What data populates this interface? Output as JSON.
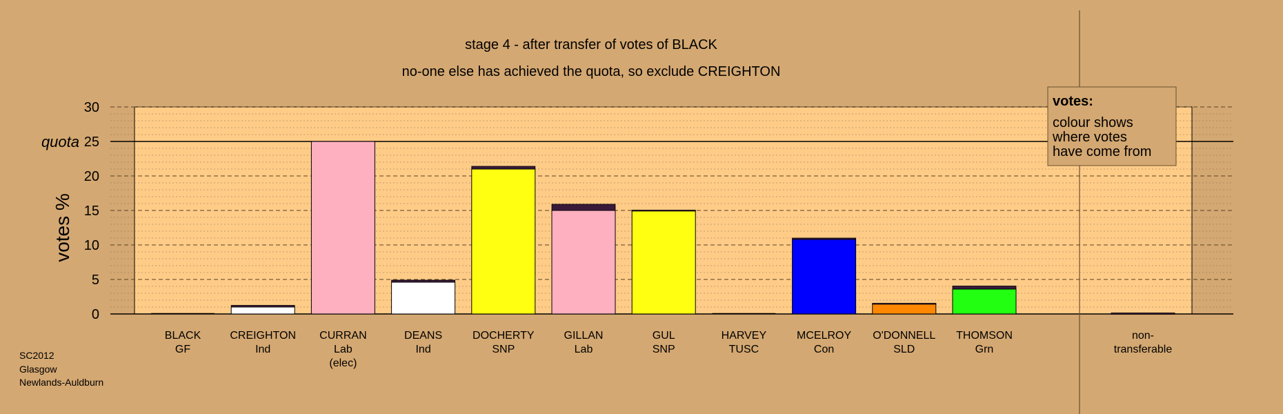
{
  "chart_data": {
    "type": "bar",
    "title": "stage 4 - after transfer of votes of BLACK",
    "subtitle": "no-one else has achieved the quota, so exclude CREIGHTON",
    "ylabel": "votes %",
    "ylim": [
      0,
      30
    ],
    "yticks": [
      "0",
      "5",
      "10",
      "15",
      "20",
      "25",
      "30"
    ],
    "quota_label": "quota",
    "quota_value": 25,
    "grid": true,
    "legend_placement": "top-right",
    "legend": {
      "title": "votes:",
      "lines": [
        "colour shows",
        "where votes",
        "have come from"
      ]
    },
    "colors": {
      "background": "#d4a872",
      "plot_background": "#ffcc88",
      "grid": "#8a6a40",
      "quota_line": "#000000",
      "transfer_accent": "#3a1a3a"
    },
    "categories": [
      {
        "name": "BLACK",
        "party": "GF",
        "note": "",
        "value": 0.0,
        "transfer": 0.0,
        "color": "#22aa22"
      },
      {
        "name": "CREIGHTON",
        "party": "Ind",
        "note": "",
        "value": 1.0,
        "transfer": 0.25,
        "color": "#ffffff"
      },
      {
        "name": "CURRAN",
        "party": "Lab",
        "note": "(elec)",
        "value": 25.0,
        "transfer": 0.0,
        "color": "#ffb0c0"
      },
      {
        "name": "DEANS",
        "party": "Ind",
        "note": "",
        "value": 4.6,
        "transfer": 0.3,
        "color": "#ffffff"
      },
      {
        "name": "DOCHERTY",
        "party": "SNP",
        "note": "",
        "value": 21.0,
        "transfer": 0.4,
        "color": "#ffff11"
      },
      {
        "name": "GILLAN",
        "party": "Lab",
        "note": "",
        "value": 15.0,
        "transfer": 0.9,
        "color": "#ffb0c0"
      },
      {
        "name": "GUL",
        "party": "SNP",
        "note": "",
        "value": 15.0,
        "transfer": 0.05,
        "color": "#ffff11"
      },
      {
        "name": "HARVEY",
        "party": "TUSC",
        "note": "",
        "value": 0.0,
        "transfer": 0.0,
        "color": "#ee1111"
      },
      {
        "name": "MCELROY",
        "party": "Con",
        "note": "",
        "value": 10.8,
        "transfer": 0.2,
        "color": "#0000ff"
      },
      {
        "name": "O'DONNELL",
        "party": "SLD",
        "note": "",
        "value": 1.5,
        "transfer": 0.05,
        "color": "#ff8800"
      },
      {
        "name": "THOMSON",
        "party": "Grn",
        "note": "",
        "value": 3.6,
        "transfer": 0.45,
        "color": "#22ff11"
      }
    ],
    "nontransferable": {
      "label_line1": "non-",
      "label_line2": "transferable",
      "value": 0.15,
      "color": "#3a1a3a"
    }
  },
  "source": {
    "lines": [
      "SC2012",
      "Glasgow",
      "Newlands-Auldburn"
    ]
  }
}
